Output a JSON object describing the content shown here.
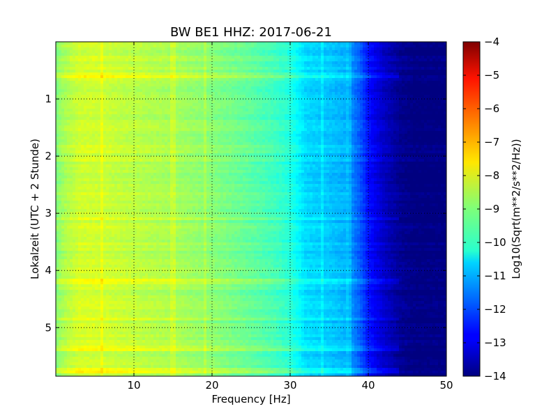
{
  "chart_data": {
    "type": "heatmap",
    "title": "BW BE1 HHZ: 2017-06-21",
    "xlabel": "Frequency [Hz]",
    "ylabel": "Lokalzeit (UTC + 2 Stunde)",
    "xlim": [
      0,
      50
    ],
    "ylim": [
      0,
      5.85
    ],
    "y_inverted": true,
    "x_ticks": [
      10,
      20,
      30,
      40,
      50
    ],
    "x_tick_labels": [
      "10",
      "20",
      "30",
      "40",
      "50"
    ],
    "y_ticks": [
      1,
      2,
      3,
      4,
      5
    ],
    "y_tick_labels": [
      "1",
      "2",
      "3",
      "4",
      "5"
    ],
    "grid": true,
    "colormap": "jet",
    "colorbar": {
      "label": "Log10(Sqrt(m**2/s**2/Hz))",
      "range": [
        -14,
        -4
      ],
      "ticks": [
        -4,
        -5,
        -6,
        -7,
        -8,
        -9,
        -10,
        -11,
        -12,
        -13,
        -14
      ],
      "tick_labels": [
        "−4",
        "−5",
        "−6",
        "−7",
        "−8",
        "−9",
        "−10",
        "−11",
        "−12",
        "−13",
        "−14"
      ]
    },
    "spectral_profile": {
      "frequency_hz": [
        0,
        1,
        3,
        5,
        10,
        15,
        20,
        25,
        28,
        30,
        32,
        35,
        37,
        39,
        40,
        42,
        44,
        46,
        50
      ],
      "log10_amplitude": [
        -9.0,
        -8.6,
        -8.2,
        -8.2,
        -8.4,
        -8.6,
        -8.9,
        -9.3,
        -9.6,
        -9.9,
        -10.6,
        -10.8,
        -11.0,
        -11.9,
        -12.6,
        -13.3,
        -13.8,
        -14.0,
        -14.0
      ]
    },
    "narrowband_lines_hz": [
      6,
      15,
      19,
      34,
      37.5
    ],
    "broadband_events_time": [
      0.58,
      3.1,
      4.2,
      4.85,
      5.38,
      5.75
    ]
  }
}
